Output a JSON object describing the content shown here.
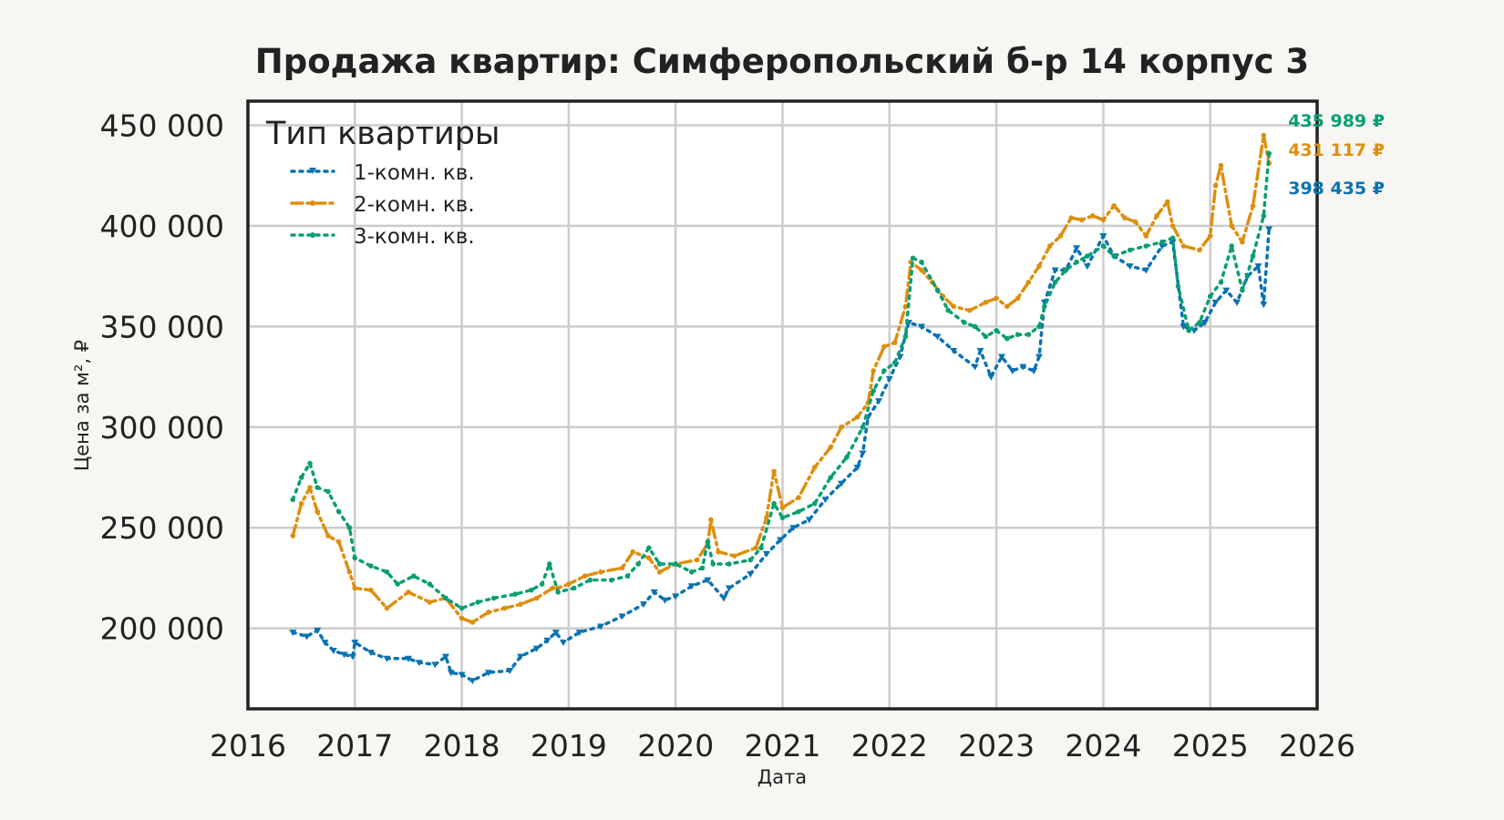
{
  "chart_data": {
    "type": "line",
    "title": "Продажа квартир: Симферопольский б-р 14 корпус 3",
    "xlabel": "Дата",
    "ylabel": "Цена за м², ₽",
    "xlim": [
      2016.0,
      2026.0
    ],
    "ylim": [
      160000,
      462000
    ],
    "x_ticks": [
      2016,
      2017,
      2018,
      2019,
      2020,
      2021,
      2022,
      2023,
      2024,
      2025,
      2026
    ],
    "x_tick_labels": [
      "2016",
      "2017",
      "2018",
      "2019",
      "2020",
      "2021",
      "2022",
      "2023",
      "2024",
      "2025",
      "2026"
    ],
    "y_ticks": [
      200000,
      250000,
      300000,
      350000,
      400000,
      450000
    ],
    "y_tick_labels": [
      "200 000",
      "250 000",
      "300 000",
      "350 000",
      "400 000",
      "450 000"
    ],
    "grid": true,
    "legend": {
      "title": "Тип квартиры",
      "placement": "top-left"
    },
    "series": [
      {
        "name": "1-комн. кв.",
        "color": "#0a72b2",
        "style": "dotted",
        "marker": "triangle-down",
        "end_label": "398 435 ₽",
        "points": [
          [
            2016.42,
            198000
          ],
          [
            2016.55,
            196000
          ],
          [
            2016.65,
            199000
          ],
          [
            2016.72,
            193000
          ],
          [
            2016.8,
            189000
          ],
          [
            2016.9,
            187000
          ],
          [
            2016.98,
            186000
          ],
          [
            2017.0,
            193000
          ],
          [
            2017.15,
            188000
          ],
          [
            2017.3,
            185000
          ],
          [
            2017.5,
            185000
          ],
          [
            2017.6,
            183000
          ],
          [
            2017.75,
            182000
          ],
          [
            2017.85,
            186000
          ],
          [
            2017.9,
            178000
          ],
          [
            2018.0,
            177000
          ],
          [
            2018.1,
            174000
          ],
          [
            2018.25,
            178000
          ],
          [
            2018.45,
            179000
          ],
          [
            2018.55,
            186000
          ],
          [
            2018.7,
            190000
          ],
          [
            2018.8,
            194000
          ],
          [
            2018.88,
            198000
          ],
          [
            2018.95,
            193000
          ],
          [
            2019.1,
            198000
          ],
          [
            2019.3,
            201000
          ],
          [
            2019.5,
            206000
          ],
          [
            2019.7,
            212000
          ],
          [
            2019.8,
            218000
          ],
          [
            2019.9,
            214000
          ],
          [
            2020.0,
            216000
          ],
          [
            2020.15,
            221000
          ],
          [
            2020.3,
            224000
          ],
          [
            2020.45,
            215000
          ],
          [
            2020.5,
            220000
          ],
          [
            2020.7,
            227000
          ],
          [
            2020.85,
            237000
          ],
          [
            2020.98,
            244000
          ],
          [
            2021.1,
            250000
          ],
          [
            2021.25,
            254000
          ],
          [
            2021.4,
            264000
          ],
          [
            2021.55,
            272000
          ],
          [
            2021.7,
            280000
          ],
          [
            2021.75,
            287000
          ],
          [
            2021.8,
            305000
          ],
          [
            2021.9,
            313000
          ],
          [
            2022.0,
            324000
          ],
          [
            2022.1,
            335000
          ],
          [
            2022.18,
            352000
          ],
          [
            2022.3,
            350000
          ],
          [
            2022.45,
            345000
          ],
          [
            2022.6,
            338000
          ],
          [
            2022.8,
            330000
          ],
          [
            2022.85,
            338000
          ],
          [
            2022.95,
            325000
          ],
          [
            2023.05,
            335000
          ],
          [
            2023.15,
            328000
          ],
          [
            2023.25,
            330000
          ],
          [
            2023.35,
            328000
          ],
          [
            2023.4,
            335000
          ],
          [
            2023.45,
            362000
          ],
          [
            2023.55,
            378000
          ],
          [
            2023.65,
            378000
          ],
          [
            2023.75,
            389000
          ],
          [
            2023.85,
            380000
          ],
          [
            2024.0,
            395000
          ],
          [
            2024.1,
            385000
          ],
          [
            2024.25,
            380000
          ],
          [
            2024.4,
            378000
          ],
          [
            2024.55,
            390000
          ],
          [
            2024.65,
            392000
          ],
          [
            2024.75,
            350000
          ],
          [
            2024.85,
            348000
          ],
          [
            2024.95,
            352000
          ],
          [
            2025.05,
            362000
          ],
          [
            2025.15,
            368000
          ],
          [
            2025.25,
            362000
          ],
          [
            2025.35,
            375000
          ],
          [
            2025.45,
            380000
          ],
          [
            2025.5,
            361000
          ],
          [
            2025.55,
            398435
          ]
        ]
      },
      {
        "name": "2-комн. кв.",
        "color": "#dc8f0f",
        "style": "dashdot",
        "marker": "circle",
        "end_label": "431 117 ₽",
        "points": [
          [
            2016.42,
            246000
          ],
          [
            2016.5,
            262000
          ],
          [
            2016.58,
            270000
          ],
          [
            2016.65,
            258000
          ],
          [
            2016.75,
            246000
          ],
          [
            2016.85,
            243000
          ],
          [
            2016.95,
            228000
          ],
          [
            2017.0,
            220000
          ],
          [
            2017.15,
            219000
          ],
          [
            2017.3,
            210000
          ],
          [
            2017.5,
            218000
          ],
          [
            2017.7,
            213000
          ],
          [
            2017.85,
            215000
          ],
          [
            2018.0,
            205000
          ],
          [
            2018.1,
            203000
          ],
          [
            2018.25,
            208000
          ],
          [
            2018.4,
            210000
          ],
          [
            2018.55,
            212000
          ],
          [
            2018.7,
            215000
          ],
          [
            2018.85,
            220000
          ],
          [
            2018.9,
            220000
          ],
          [
            2019.0,
            222000
          ],
          [
            2019.15,
            226000
          ],
          [
            2019.3,
            228000
          ],
          [
            2019.5,
            230000
          ],
          [
            2019.6,
            238000
          ],
          [
            2019.75,
            235000
          ],
          [
            2019.85,
            228000
          ],
          [
            2020.0,
            232000
          ],
          [
            2020.2,
            234000
          ],
          [
            2020.3,
            242000
          ],
          [
            2020.33,
            254000
          ],
          [
            2020.4,
            238000
          ],
          [
            2020.55,
            236000
          ],
          [
            2020.75,
            240000
          ],
          [
            2020.85,
            255000
          ],
          [
            2020.92,
            278000
          ],
          [
            2021.0,
            260000
          ],
          [
            2021.15,
            265000
          ],
          [
            2021.3,
            280000
          ],
          [
            2021.45,
            290000
          ],
          [
            2021.55,
            300000
          ],
          [
            2021.7,
            305000
          ],
          [
            2021.8,
            312000
          ],
          [
            2021.85,
            328000
          ],
          [
            2021.95,
            340000
          ],
          [
            2022.05,
            342000
          ],
          [
            2022.15,
            360000
          ],
          [
            2022.2,
            382000
          ],
          [
            2022.3,
            378000
          ],
          [
            2022.4,
            372000
          ],
          [
            2022.5,
            365000
          ],
          [
            2022.6,
            360000
          ],
          [
            2022.75,
            358000
          ],
          [
            2022.9,
            362000
          ],
          [
            2023.0,
            364000
          ],
          [
            2023.1,
            360000
          ],
          [
            2023.2,
            364000
          ],
          [
            2023.3,
            372000
          ],
          [
            2023.4,
            380000
          ],
          [
            2023.5,
            390000
          ],
          [
            2023.6,
            395000
          ],
          [
            2023.7,
            404000
          ],
          [
            2023.8,
            403000
          ],
          [
            2023.9,
            405000
          ],
          [
            2024.0,
            403000
          ],
          [
            2024.1,
            410000
          ],
          [
            2024.2,
            404000
          ],
          [
            2024.3,
            402000
          ],
          [
            2024.4,
            395000
          ],
          [
            2024.5,
            405000
          ],
          [
            2024.6,
            412000
          ],
          [
            2024.65,
            400000
          ],
          [
            2024.75,
            390000
          ],
          [
            2024.9,
            388000
          ],
          [
            2025.0,
            395000
          ],
          [
            2025.05,
            420000
          ],
          [
            2025.1,
            430000
          ],
          [
            2025.2,
            400000
          ],
          [
            2025.3,
            392000
          ],
          [
            2025.4,
            410000
          ],
          [
            2025.5,
            445000
          ],
          [
            2025.55,
            431117
          ]
        ]
      },
      {
        "name": "3-комн. кв.",
        "color": "#0a9e73",
        "style": "dotted",
        "marker": "circle",
        "end_label": "435 989 ₽",
        "points": [
          [
            2016.42,
            264000
          ],
          [
            2016.5,
            275000
          ],
          [
            2016.58,
            282000
          ],
          [
            2016.65,
            270000
          ],
          [
            2016.75,
            268000
          ],
          [
            2016.85,
            258000
          ],
          [
            2016.95,
            250000
          ],
          [
            2017.0,
            235000
          ],
          [
            2017.15,
            231000
          ],
          [
            2017.3,
            228000
          ],
          [
            2017.4,
            222000
          ],
          [
            2017.55,
            226000
          ],
          [
            2017.7,
            222000
          ],
          [
            2017.85,
            215000
          ],
          [
            2018.0,
            210000
          ],
          [
            2018.15,
            213000
          ],
          [
            2018.3,
            215000
          ],
          [
            2018.5,
            217000
          ],
          [
            2018.65,
            219000
          ],
          [
            2018.75,
            222000
          ],
          [
            2018.82,
            232000
          ],
          [
            2018.9,
            218000
          ],
          [
            2019.05,
            220000
          ],
          [
            2019.2,
            224000
          ],
          [
            2019.4,
            224000
          ],
          [
            2019.55,
            226000
          ],
          [
            2019.65,
            232000
          ],
          [
            2019.75,
            240000
          ],
          [
            2019.85,
            232000
          ],
          [
            2020.0,
            232000
          ],
          [
            2020.15,
            228000
          ],
          [
            2020.25,
            230000
          ],
          [
            2020.3,
            243000
          ],
          [
            2020.35,
            232000
          ],
          [
            2020.5,
            232000
          ],
          [
            2020.7,
            234000
          ],
          [
            2020.8,
            240000
          ],
          [
            2020.92,
            262000
          ],
          [
            2021.0,
            255000
          ],
          [
            2021.15,
            258000
          ],
          [
            2021.3,
            262000
          ],
          [
            2021.45,
            275000
          ],
          [
            2021.6,
            285000
          ],
          [
            2021.75,
            300000
          ],
          [
            2021.85,
            318000
          ],
          [
            2021.95,
            328000
          ],
          [
            2022.05,
            332000
          ],
          [
            2022.15,
            345000
          ],
          [
            2022.22,
            384000
          ],
          [
            2022.3,
            382000
          ],
          [
            2022.45,
            368000
          ],
          [
            2022.55,
            358000
          ],
          [
            2022.7,
            352000
          ],
          [
            2022.8,
            350000
          ],
          [
            2022.9,
            345000
          ],
          [
            2023.0,
            348000
          ],
          [
            2023.1,
            344000
          ],
          [
            2023.2,
            346000
          ],
          [
            2023.3,
            346000
          ],
          [
            2023.4,
            350000
          ],
          [
            2023.45,
            360000
          ],
          [
            2023.55,
            372000
          ],
          [
            2023.65,
            378000
          ],
          [
            2023.75,
            382000
          ],
          [
            2023.85,
            385000
          ],
          [
            2024.0,
            390000
          ],
          [
            2024.1,
            385000
          ],
          [
            2024.25,
            388000
          ],
          [
            2024.4,
            390000
          ],
          [
            2024.55,
            392000
          ],
          [
            2024.65,
            394000
          ],
          [
            2024.7,
            370000
          ],
          [
            2024.8,
            348000
          ],
          [
            2024.9,
            352000
          ],
          [
            2025.0,
            365000
          ],
          [
            2025.1,
            372000
          ],
          [
            2025.2,
            390000
          ],
          [
            2025.3,
            368000
          ],
          [
            2025.4,
            385000
          ],
          [
            2025.5,
            405000
          ],
          [
            2025.55,
            435989
          ]
        ]
      }
    ]
  }
}
